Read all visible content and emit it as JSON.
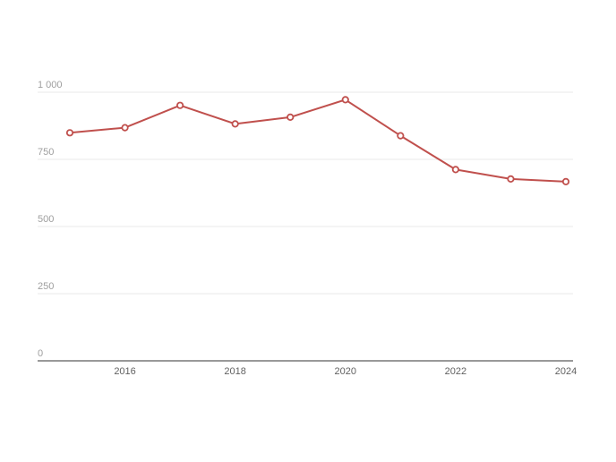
{
  "chart_data": {
    "type": "line",
    "x": [
      2015,
      2016,
      2017,
      2018,
      2019,
      2020,
      2021,
      2022,
      2023,
      2024
    ],
    "series": [
      {
        "values": [
          849,
          868,
          951,
          882,
          907,
          972,
          838,
          712,
          677,
          667
        ]
      }
    ],
    "x_ticks": [
      "2016",
      "2018",
      "2020",
      "2022",
      "2024"
    ],
    "y_ticks": [
      {
        "value": 0,
        "label": "0"
      },
      {
        "value": 250,
        "label": "250"
      },
      {
        "value": 500,
        "label": "500"
      },
      {
        "value": 750,
        "label": "750"
      },
      {
        "value": 1000,
        "label": "1 000"
      }
    ],
    "xlim": [
      2015,
      2024
    ],
    "ylim": [
      0,
      1000
    ],
    "grid": true,
    "colors": {
      "line": "#c0504d",
      "marker_fill": "#ffffff",
      "grid": "#e8e8e8",
      "baseline": "#333333"
    }
  }
}
